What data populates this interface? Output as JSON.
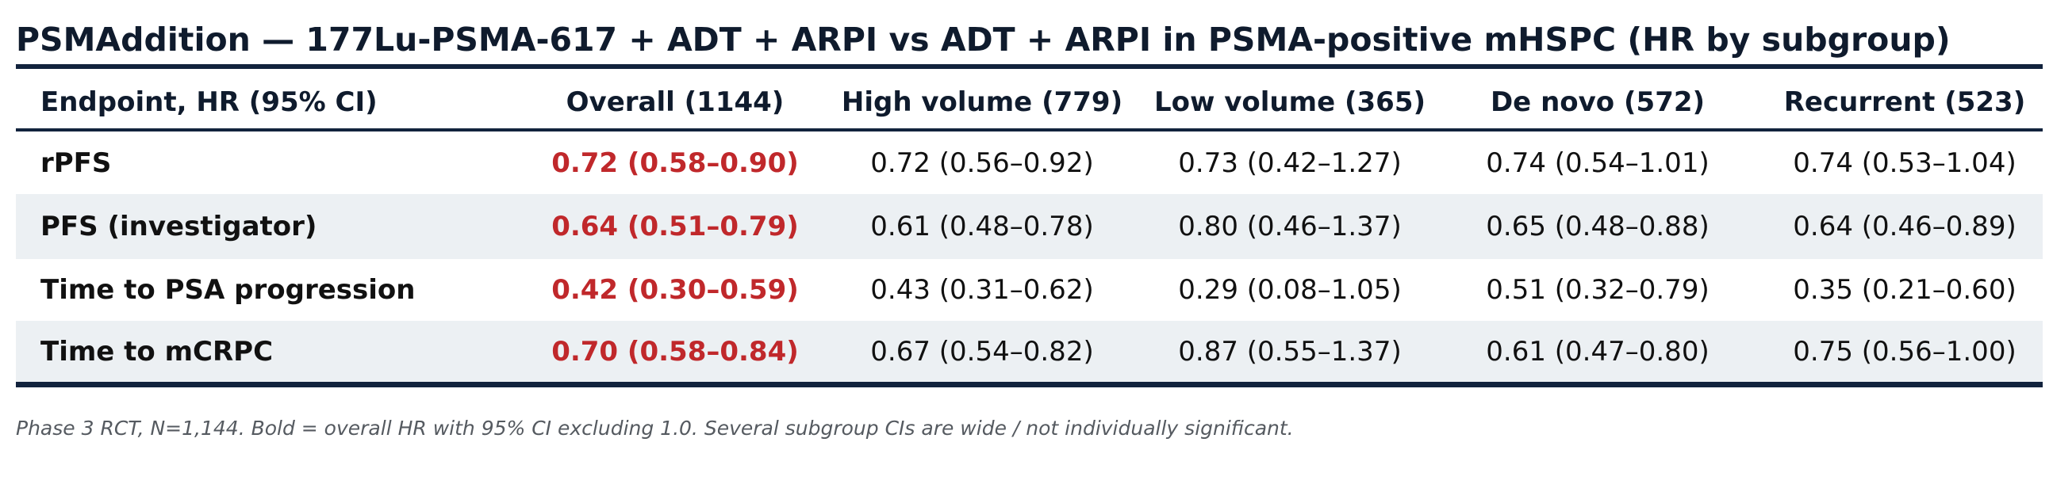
{
  "title": "PSMAddition — 177Lu-PSMA-617 + ADT + ARPI vs ADT + ARPI in PSMA-positive mHSPC (HR by subgroup)",
  "footnote": "Phase 3 RCT, N=1,144. Bold = overall HR with 95% CI excluding 1.0. Several subgroup CIs are wide / not individually significant.",
  "colors": {
    "significant": "#c0282b",
    "rule": "#12233d",
    "band": "#ecf0f3",
    "text": "#111111"
  },
  "chart_data": {
    "type": "table",
    "columns": [
      "Endpoint, HR (95% CI)",
      "Overall (1144)",
      "High volume (779)",
      "Low volume (365)",
      "De novo (572)",
      "Recurrent (523)"
    ],
    "rows": [
      {
        "endpoint": "rPFS",
        "cells": [
          "0.72 (0.58–0.90)",
          "0.72 (0.56–0.92)",
          "0.73 (0.42–1.27)",
          "0.74 (0.54–1.01)",
          "0.74 (0.53–1.04)"
        ]
      },
      {
        "endpoint": "PFS (investigator)",
        "cells": [
          "0.64 (0.51–0.79)",
          "0.61 (0.48–0.78)",
          "0.80 (0.46–1.37)",
          "0.65 (0.48–0.88)",
          "0.64 (0.46–0.89)"
        ]
      },
      {
        "endpoint": "Time to PSA progression",
        "cells": [
          "0.42 (0.30–0.59)",
          "0.43 (0.31–0.62)",
          "0.29 (0.08–1.05)",
          "0.51 (0.32–0.79)",
          "0.35 (0.21–0.60)"
        ]
      },
      {
        "endpoint": "Time to mCRPC",
        "cells": [
          "0.70 (0.58–0.84)",
          "0.67 (0.54–0.82)",
          "0.87 (0.55–1.37)",
          "0.61 (0.47–0.80)",
          "0.75 (0.56–1.00)"
        ]
      }
    ],
    "highlighted_column": "Overall (1144)"
  }
}
